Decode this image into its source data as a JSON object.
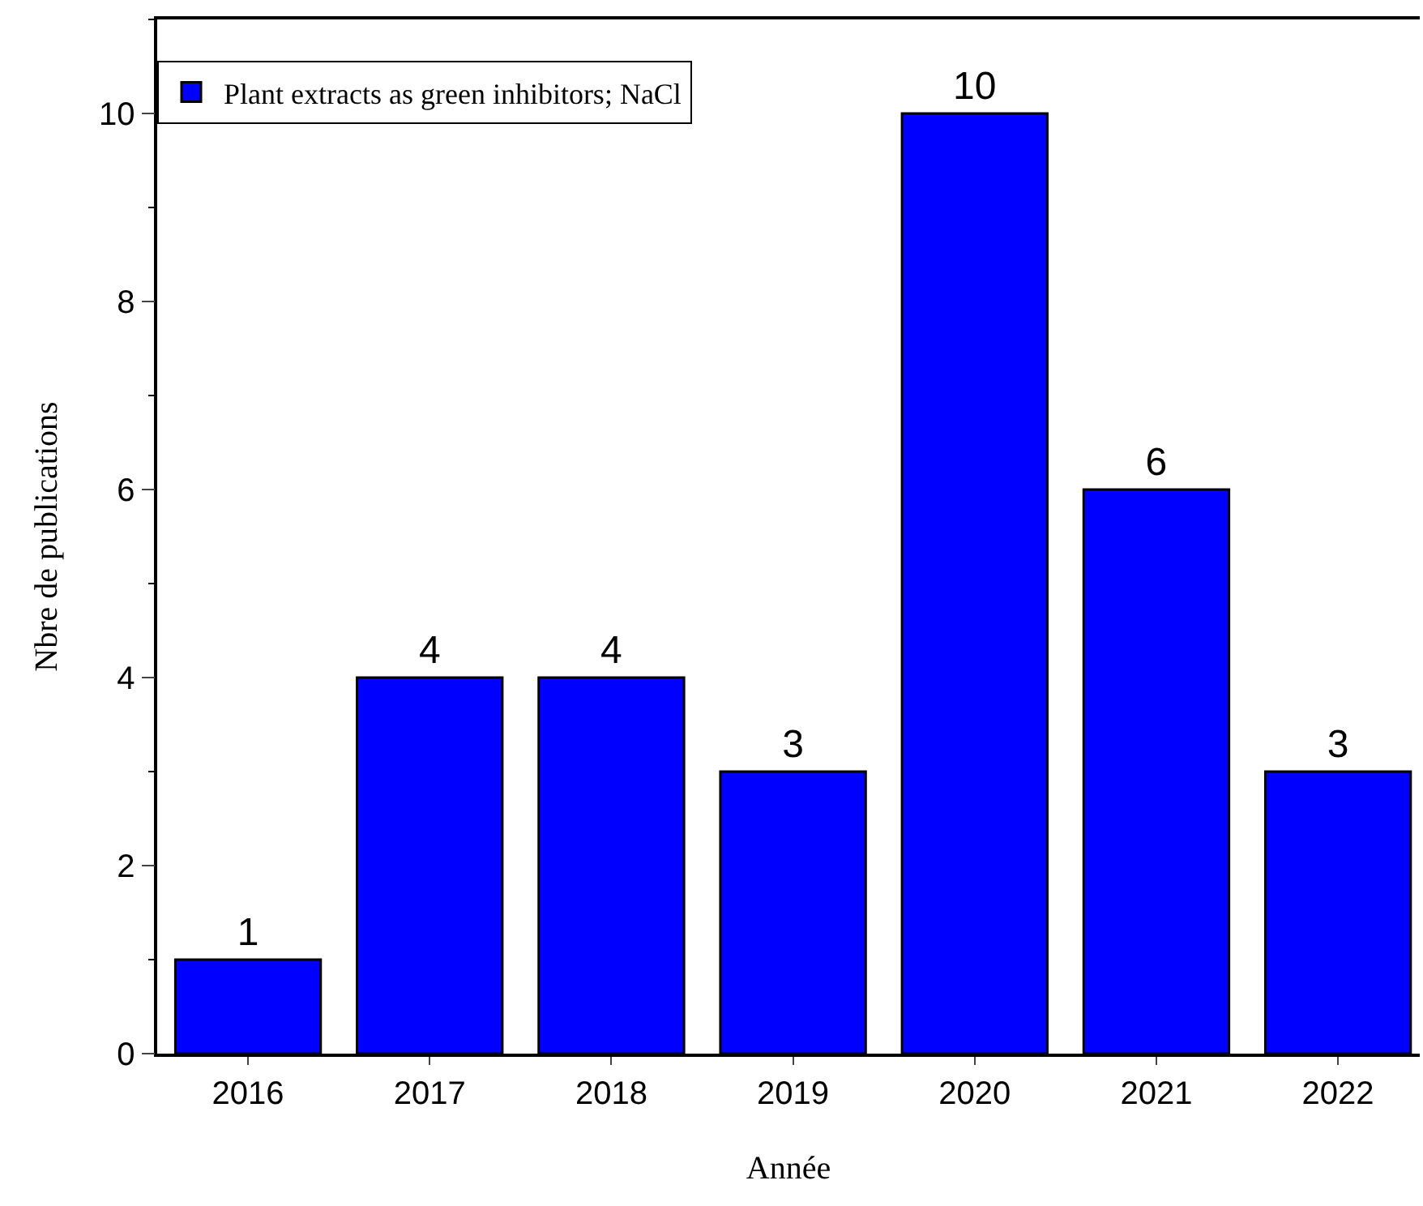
{
  "chart_data": {
    "type": "bar",
    "xlabel": "Année",
    "ylabel": "Nbre de publications",
    "categories": [
      "2016",
      "2017",
      "2018",
      "2019",
      "2020",
      "2021",
      "2022"
    ],
    "series": [
      {
        "name": "Plant extracts as green inhibitors; NaCl",
        "color": "#0000ff",
        "values": [
          1,
          4,
          4,
          3,
          10,
          6,
          3
        ]
      }
    ],
    "ylim": [
      0,
      11
    ],
    "yticks": [
      0,
      2,
      4,
      6,
      8,
      10
    ],
    "data_labels": true,
    "legend": "top left"
  }
}
